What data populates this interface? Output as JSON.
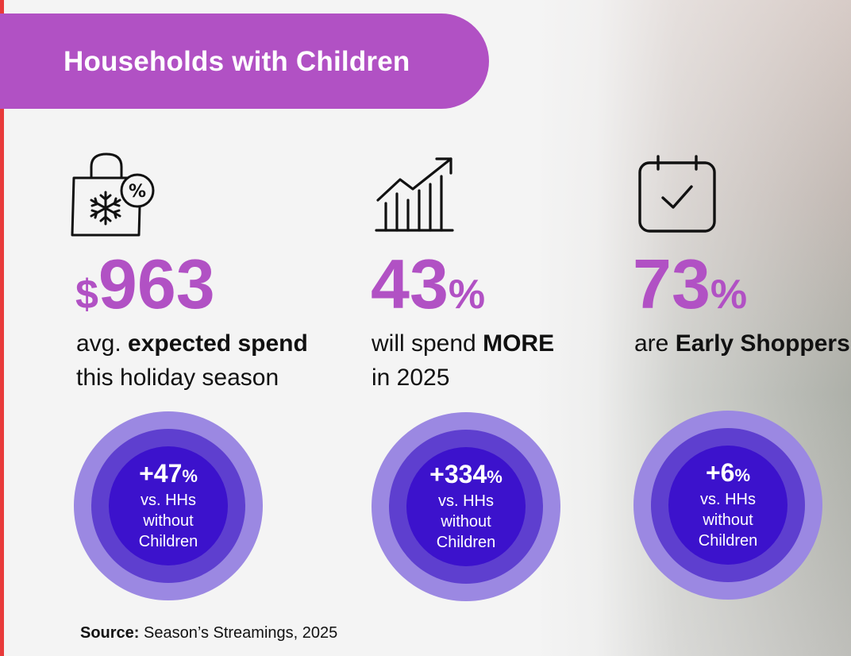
{
  "header": {
    "title": "Households with Children"
  },
  "stats": [
    {
      "icon": "shopping-bag-snowflake-icon",
      "prefix": "$",
      "value": "963",
      "suffix": "",
      "line1_pre": "avg. ",
      "line1_bold": "expected spend",
      "line1_post": "",
      "line2": "this holiday season",
      "comparison": {
        "value": "+47",
        "unit": "%",
        "line1": "vs. HHs",
        "line2": "without",
        "line3": "Children"
      }
    },
    {
      "icon": "growth-chart-icon",
      "prefix": "",
      "value": "43",
      "suffix": "%",
      "line1_pre": "will spend ",
      "line1_bold": "MORE",
      "line1_post": "",
      "line2": "in 2025",
      "comparison": {
        "value": "+334",
        "unit": "%",
        "line1": "vs. HHs",
        "line2": "without",
        "line3": "Children"
      }
    },
    {
      "icon": "calendar-check-icon",
      "prefix": "",
      "value": "73",
      "suffix": "%",
      "line1_pre": "are ",
      "line1_bold": "Early Shoppers",
      "line1_post": "",
      "line2": "",
      "comparison": {
        "value": "+6",
        "unit": "%",
        "line1": "vs. HHs",
        "line2": "without",
        "line3": "Children"
      }
    }
  ],
  "source": {
    "label": "Source:",
    "text": " Season’s Streamings, 2025"
  },
  "colors": {
    "accent": "#b151c4",
    "ring_outer": "#9b88e2",
    "ring_mid": "#5e3fcf",
    "ring_inner": "#3c12cc",
    "edge": "#e83a3a"
  }
}
